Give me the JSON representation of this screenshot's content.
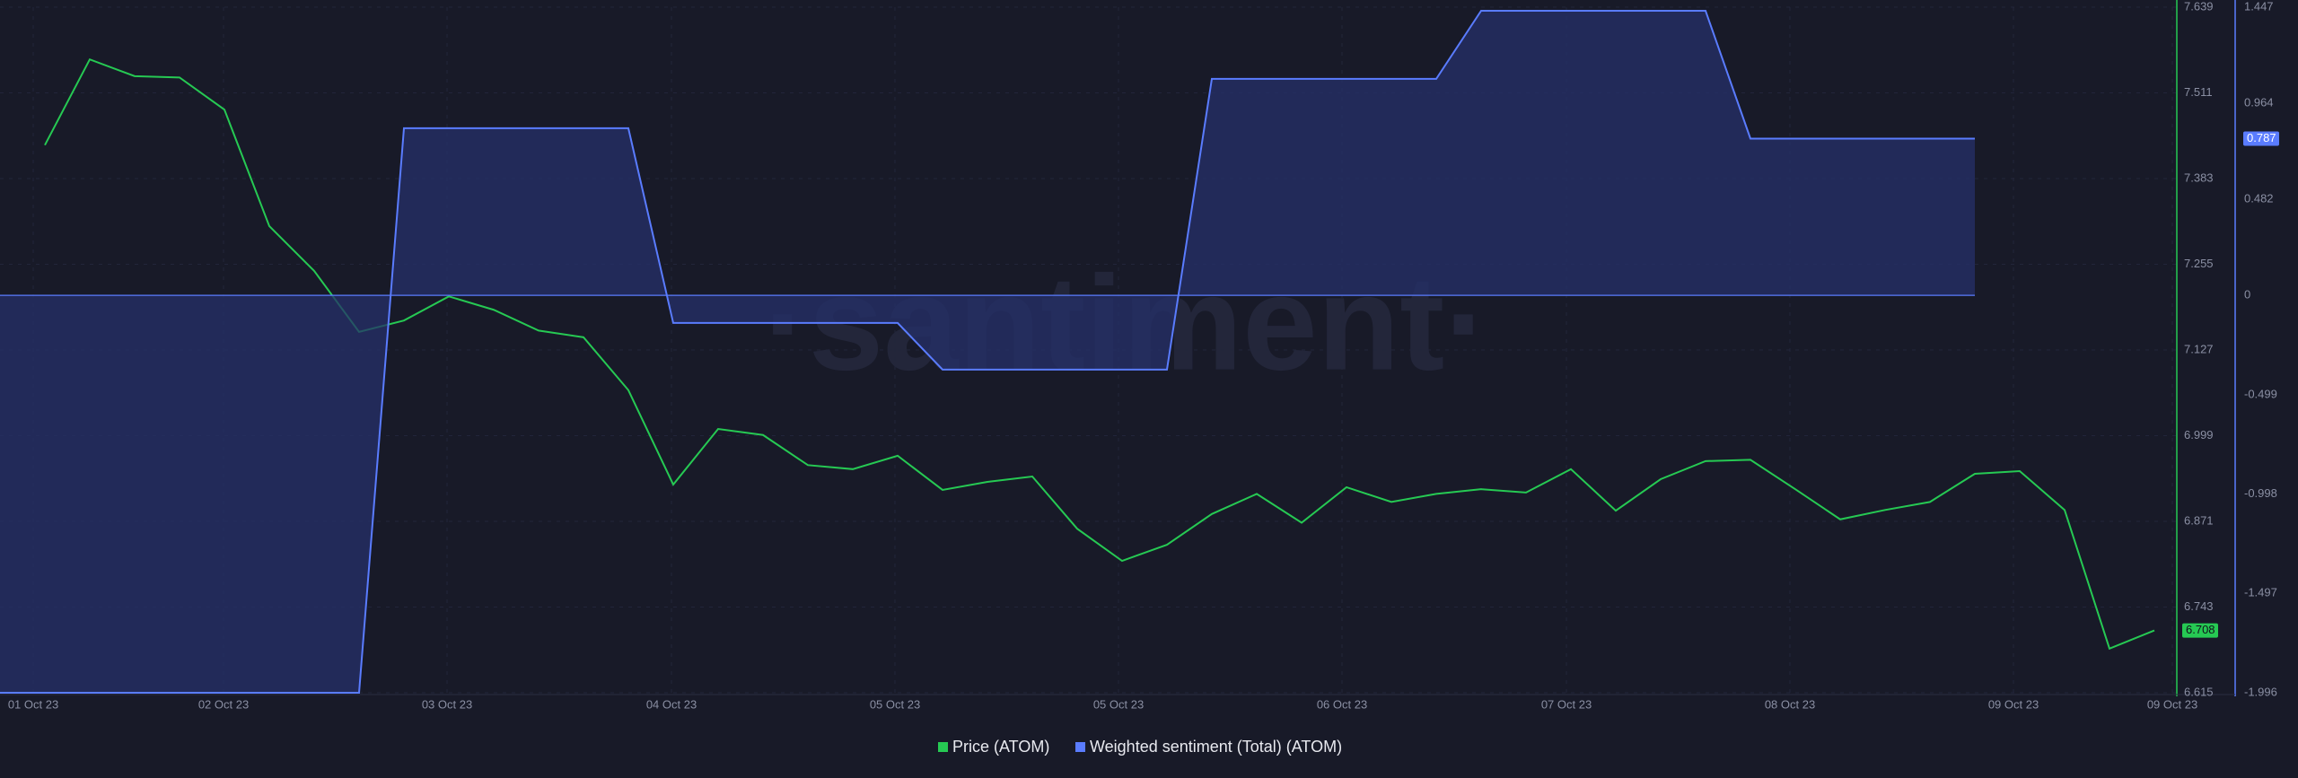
{
  "chart_data": {
    "type": "line",
    "watermark": "·santiment·",
    "categories": [
      null,
      null,
      null,
      null,
      null,
      null,
      null,
      null,
      null,
      null,
      null,
      null,
      null,
      null,
      null,
      null,
      null,
      null,
      null,
      null,
      null,
      null,
      null,
      null,
      null,
      null,
      null,
      null,
      null,
      null,
      null,
      null,
      null,
      null,
      null,
      null,
      null,
      null,
      null,
      null,
      null,
      null,
      null,
      null,
      null,
      null,
      null,
      null,
      null
    ],
    "xtick_labels": [
      "01 Oct 23",
      "02 Oct 23",
      "03 Oct 23",
      "04 Oct 23",
      "05 Oct 23",
      "05 Oct 23",
      "06 Oct 23",
      "07 Oct 23",
      "08 Oct 23",
      "09 Oct 23",
      "09 Oct 23"
    ],
    "series": [
      {
        "name": "Price (ATOM)",
        "color": "#26c953",
        "values": [
          null,
          7.433,
          7.561,
          7.536,
          7.534,
          7.486,
          7.312,
          7.245,
          7.154,
          7.171,
          7.207,
          7.187,
          7.156,
          7.146,
          7.067,
          6.926,
          7.009,
          7.0,
          6.955,
          6.949,
          6.969,
          6.918,
          6.93,
          6.938,
          6.86,
          6.812,
          6.836,
          6.882,
          6.912,
          6.869,
          6.922,
          6.9,
          6.912,
          6.919,
          6.914,
          6.949,
          6.887,
          6.934,
          6.961,
          6.963,
          6.919,
          6.874,
          6.888,
          6.9,
          6.942,
          6.946,
          6.888,
          6.681,
          6.708
        ]
      },
      {
        "name": "Weighted sentiment (Total) (ATOM)",
        "color": "#5a7cff",
        "axis": "y2",
        "values": [
          -1.996,
          -1.996,
          -1.996,
          -1.996,
          -1.996,
          -1.996,
          -1.996,
          -1.996,
          -1.996,
          0.839,
          0.839,
          0.839,
          0.839,
          0.839,
          0.839,
          -0.139,
          -0.139,
          -0.139,
          -0.139,
          -0.139,
          -0.139,
          -0.373,
          -0.373,
          -0.373,
          -0.373,
          -0.373,
          -0.373,
          1.087,
          1.087,
          1.087,
          1.087,
          1.087,
          1.087,
          1.429,
          1.429,
          1.429,
          1.429,
          1.429,
          1.429,
          0.787,
          0.787,
          0.787,
          0.787,
          0.787,
          0.787,
          null,
          null,
          null,
          null
        ]
      }
    ],
    "ylim": [
      6.615,
      7.639
    ],
    "yticks": [
      6.615,
      6.743,
      6.871,
      6.999,
      7.127,
      7.255,
      7.383,
      7.511,
      7.639
    ],
    "y2lim": [
      -1.996,
      1.447
    ],
    "y2ticks": [
      -1.996,
      -1.497,
      -0.998,
      -0.499,
      0,
      0.482,
      0.964,
      1.447
    ],
    "grid": true
  }
}
